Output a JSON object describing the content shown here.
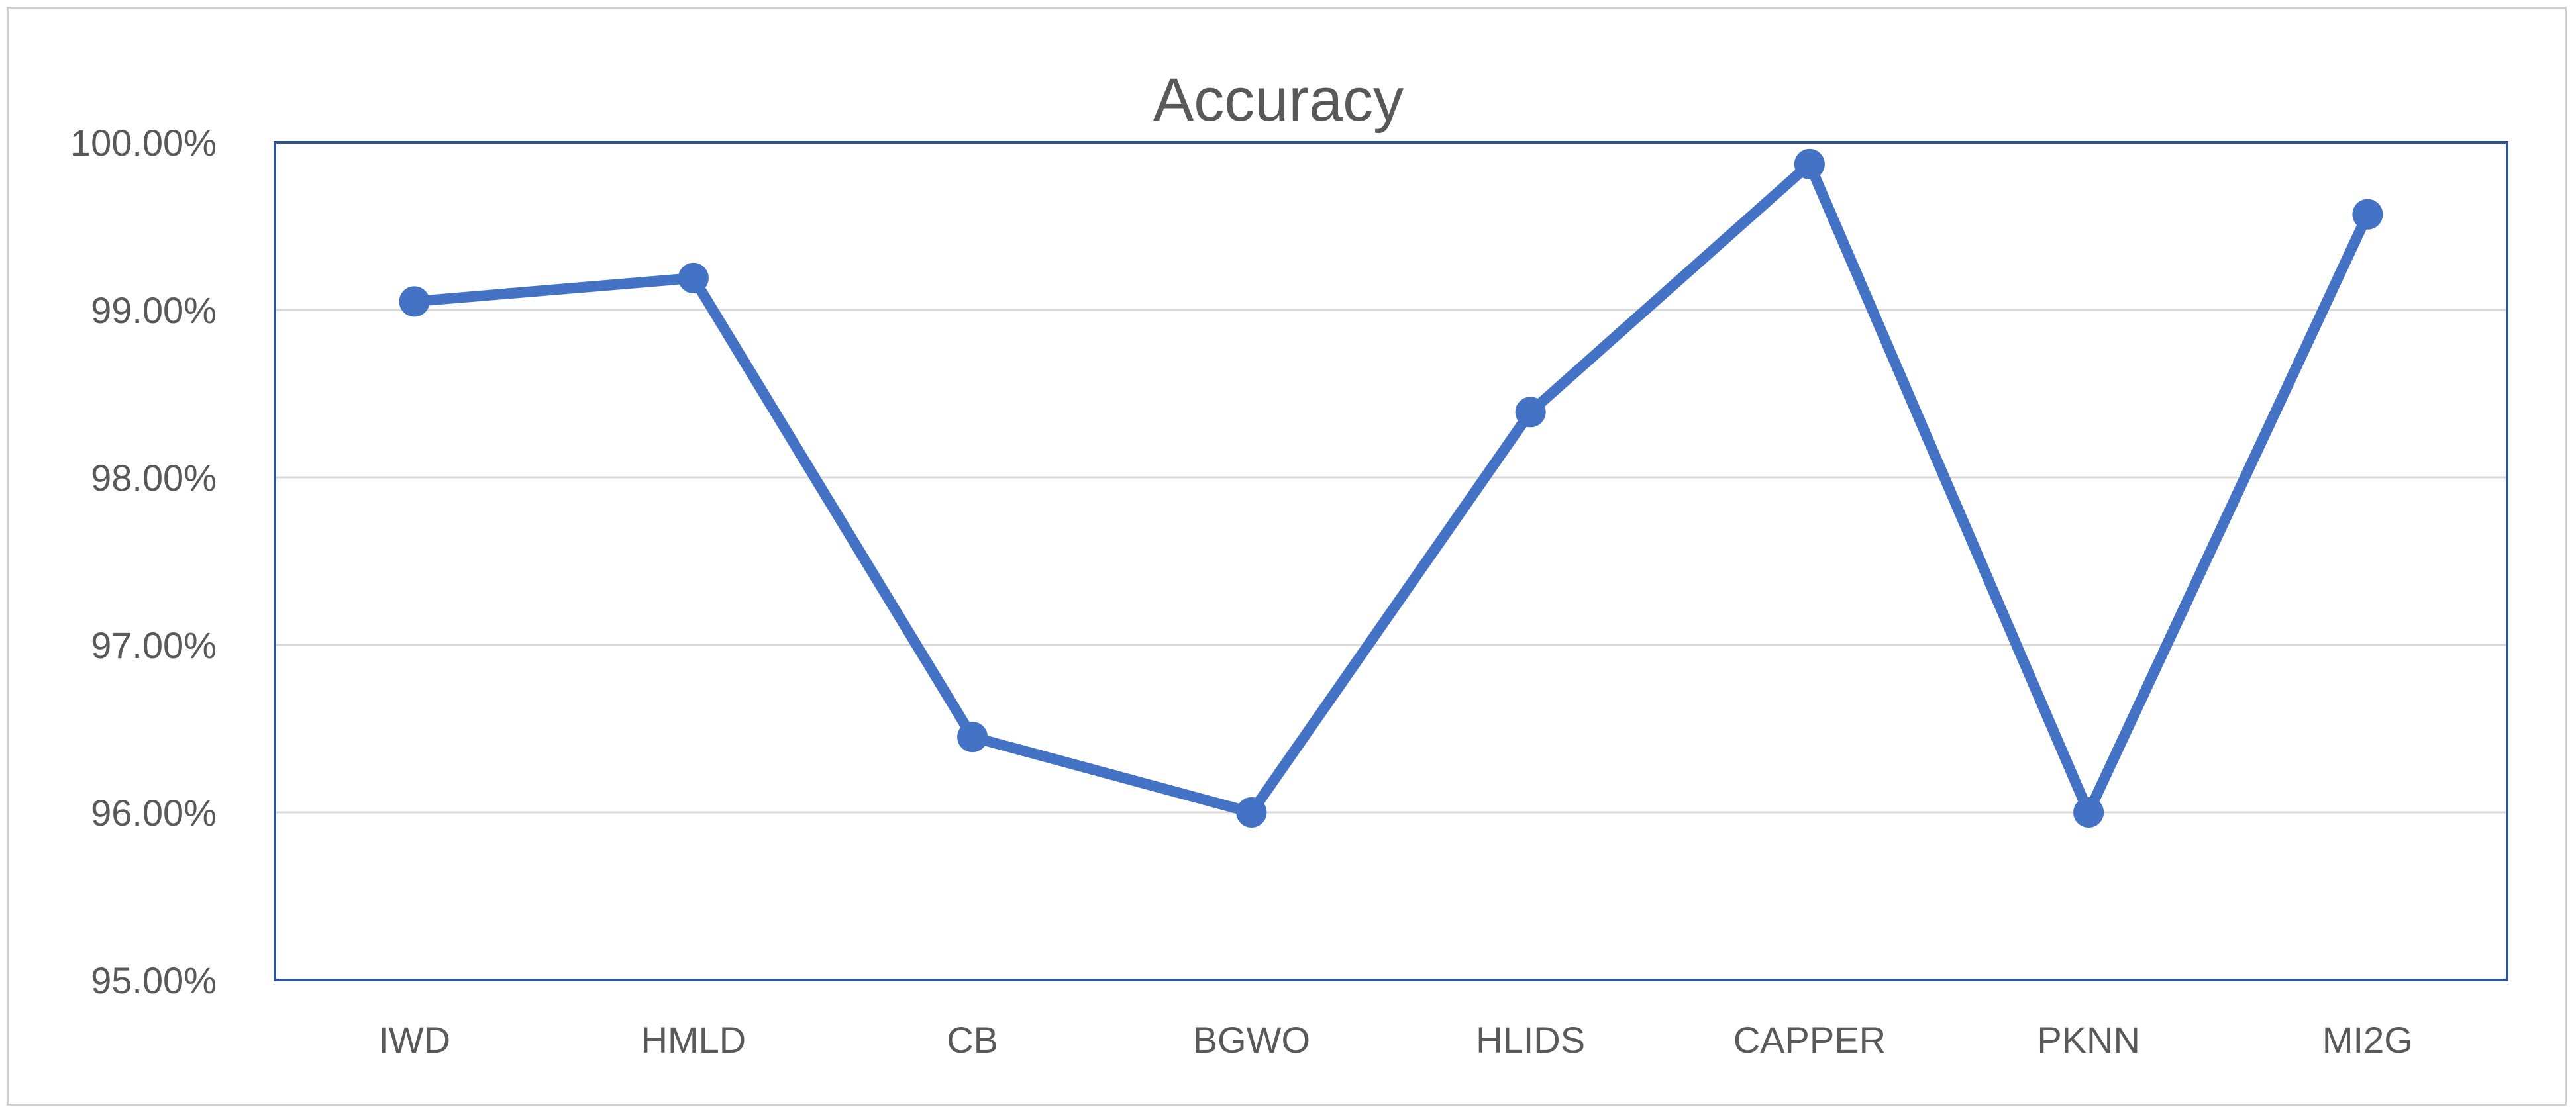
{
  "chart_data": {
    "type": "line",
    "title": "Accuracy",
    "xlabel": "",
    "ylabel": "",
    "categories": [
      "IWD",
      "HMLD",
      "CB",
      "BGWO",
      "HLIDS",
      "CAPPER",
      "PKNN",
      "MI2G"
    ],
    "series": [
      {
        "values": [
          0.9905,
          0.9919,
          0.9645,
          0.96,
          0.9839,
          0.9987,
          0.96,
          0.9957
        ]
      }
    ],
    "ylim": [
      0.95,
      1.0
    ],
    "yticks": [
      0.95,
      0.96,
      0.97,
      0.98,
      0.99,
      1.0
    ],
    "ytick_labels": [
      "95.00%",
      "96.00%",
      "97.00%",
      "98.00%",
      "99.00%",
      "100.00%"
    ],
    "grid": true,
    "legend": "none",
    "colors": {
      "line": "#4472c4",
      "plot_border": "#2f5597",
      "grid": "#d9d9d9",
      "text": "#595959"
    }
  }
}
